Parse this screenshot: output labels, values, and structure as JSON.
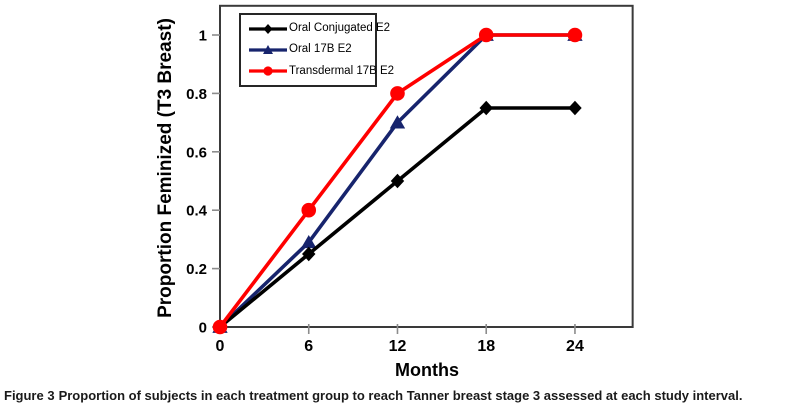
{
  "figure": {
    "caption_label": "Figure 3",
    "caption_text": "Proportion of subjects in each treatment group to reach Tanner breast stage 3 assessed at each study interval."
  },
  "chart_data": {
    "type": "line",
    "title": "",
    "xlabel": "Months",
    "ylabel": "Proportion Feminized (T3 Breast)",
    "x": [
      0,
      6,
      12,
      18,
      24
    ],
    "series": [
      {
        "name": "Oral Conjugated E2",
        "color": "#000000",
        "marker": "diamond",
        "values": [
          0,
          0.25,
          0.5,
          0.75,
          0.75
        ]
      },
      {
        "name": "Oral 17B E2",
        "color": "#17246D",
        "marker": "triangle",
        "values": [
          0,
          0.29,
          0.7,
          1.0,
          1.0
        ]
      },
      {
        "name": "Transdermal 17B E2",
        "color": "#FF0000",
        "marker": "circle",
        "values": [
          0,
          0.4,
          0.8,
          1.0,
          1.0
        ]
      }
    ],
    "draw_order": [
      1,
      0,
      2
    ],
    "x_ticks": [
      0,
      6,
      12,
      18,
      24
    ],
    "y_ticks": [
      0,
      0.2,
      0.4,
      0.6,
      0.8,
      1
    ],
    "xlim": [
      0,
      27.9
    ],
    "ylim": [
      0,
      1.1
    ],
    "grid": false,
    "legend_position": "top-left",
    "frame_color": "#3a3a3a",
    "tick_color": "#8c8c8c",
    "tick_label_color": "#000000"
  }
}
